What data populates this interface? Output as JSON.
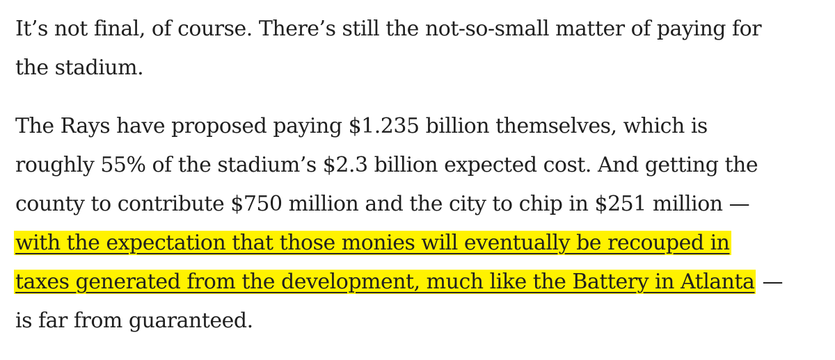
{
  "article": {
    "paragraphs": [
      {
        "lines": [
          "It’s not final, of course. There’s still the not-so-small matter of paying for",
          "the stadium."
        ]
      },
      {
        "lines": [
          "The Rays have proposed paying $1.235 billion themselves, which is",
          "roughly 55% of the stadium’s $2.3 billion expected cost. And getting the",
          "county to contribute $750 million and the city to chip in $251 million —"
        ],
        "highlighted_lines": [
          "with the expectation that those monies will eventually be recouped in",
          "taxes generated from the development, much like the Battery in Atlanta"
        ],
        "highlight_trailing": " —",
        "closing_line": "is far from guaranteed."
      }
    ],
    "colors": {
      "text": "#1f1f1f",
      "highlight": "#fff200"
    }
  }
}
